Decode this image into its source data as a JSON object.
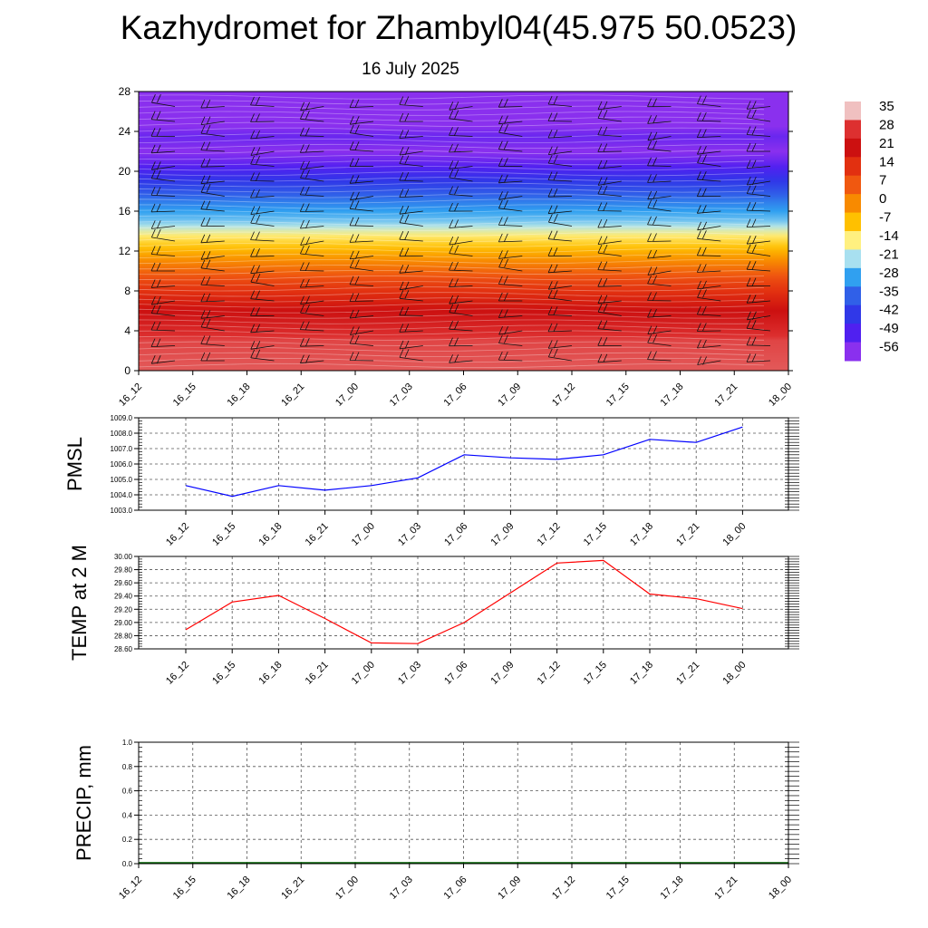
{
  "header": {
    "title": "Kazhydromet for Zhambyl04(45.975 50.0523)",
    "date": "16 July 2025"
  },
  "chart_data": [
    {
      "type": "heatmap",
      "title": "",
      "xlabel": "",
      "ylabel": "",
      "x_tick_labels": [
        "16_12",
        "16_15",
        "16_18",
        "16_21",
        "17_00",
        "17_03",
        "17_06",
        "17_09",
        "17_12",
        "17_15",
        "17_18",
        "17_21",
        "18_00"
      ],
      "y_ticks": [
        0,
        4,
        8,
        12,
        16,
        20,
        24,
        28
      ],
      "ylim": [
        0,
        28
      ],
      "colorbar_labels": [
        "35",
        "28",
        "21",
        "14",
        "7",
        "0",
        "-7",
        "-14",
        "-21",
        "-28",
        "-35",
        "-42",
        "-49",
        "-56"
      ],
      "colorbar_colors": [
        "#f0c0c0",
        "#dd3030",
        "#cc1010",
        "#e23010",
        "#f05810",
        "#f88a00",
        "#ffc000",
        "#fff080",
        "#a8e0f0",
        "#30a0f0",
        "#3060e8",
        "#3038e8",
        "#5020f0",
        "#8a30ee"
      ],
      "level_profile": [
        {
          "level": 0,
          "value": 30
        },
        {
          "level": 3,
          "value": 29
        },
        {
          "level": 6,
          "value": 21
        },
        {
          "level": 9,
          "value": 10
        },
        {
          "level": 11,
          "value": 0
        },
        {
          "level": 13.5,
          "value": -13
        },
        {
          "level": 15,
          "value": -24
        },
        {
          "level": 17,
          "value": -32
        },
        {
          "level": 19,
          "value": -42
        },
        {
          "level": 21,
          "value": -52
        },
        {
          "level": 22,
          "value": -56
        },
        {
          "level": 23.5,
          "value": -52
        },
        {
          "level": 25,
          "value": -58
        },
        {
          "level": 28,
          "value": -60
        }
      ],
      "wind_barbs": true
    },
    {
      "type": "line",
      "title": "",
      "xlabel": "",
      "ylabel": "PMSL",
      "categories": [
        "16_12",
        "16_15",
        "16_18",
        "16_21",
        "17_00",
        "17_03",
        "17_06",
        "17_09",
        "17_12",
        "17_15",
        "17_18",
        "17_21",
        "18_00"
      ],
      "series": [
        {
          "color": "#0000ff",
          "values": [
            1004.6,
            1003.9,
            1004.6,
            1004.3,
            1004.6,
            1005.1,
            1006.6,
            1006.4,
            1006.3,
            1006.6,
            1007.6,
            1007.4,
            1008.4
          ]
        }
      ],
      "y_ticks": [
        "1003.0",
        "1004.0",
        "1005.0",
        "1006.0",
        "1007.0",
        "1008.0",
        "1009.0"
      ],
      "ylim": [
        1003.0,
        1009.0
      ],
      "grid": true
    },
    {
      "type": "line",
      "title": "",
      "xlabel": "",
      "ylabel": "TEMP at 2 M",
      "categories": [
        "16_12",
        "16_15",
        "16_18",
        "16_21",
        "17_00",
        "17_03",
        "17_06",
        "17_09",
        "17_12",
        "17_15",
        "17_18",
        "17_21",
        "18_00"
      ],
      "series": [
        {
          "color": "#ff0000",
          "values": [
            28.89,
            29.31,
            29.41,
            29.06,
            28.69,
            28.68,
            29.0,
            29.45,
            29.9,
            29.94,
            29.43,
            29.36,
            29.21
          ]
        }
      ],
      "y_ticks": [
        "28.60",
        "28.80",
        "29.00",
        "29.20",
        "29.40",
        "29.60",
        "29.80",
        "30.00"
      ],
      "ylim": [
        28.6,
        30.0
      ],
      "grid": true
    },
    {
      "type": "bar",
      "title": "",
      "xlabel": "",
      "ylabel": "PRECIP, mm",
      "categories": [
        "16_12",
        "16_15",
        "16_18",
        "16_21",
        "17_00",
        "17_03",
        "17_06",
        "17_09",
        "17_12",
        "17_15",
        "17_18",
        "17_21",
        "18_00"
      ],
      "series": [
        {
          "color": "#006400",
          "values": [
            0,
            0,
            0,
            0,
            0,
            0,
            0,
            0,
            0,
            0,
            0,
            0,
            0
          ]
        }
      ],
      "y_ticks": [
        "0.0",
        "0.2",
        "0.4",
        "0.6",
        "0.8",
        "1.0"
      ],
      "ylim": [
        0,
        1.0
      ],
      "grid": true
    }
  ]
}
